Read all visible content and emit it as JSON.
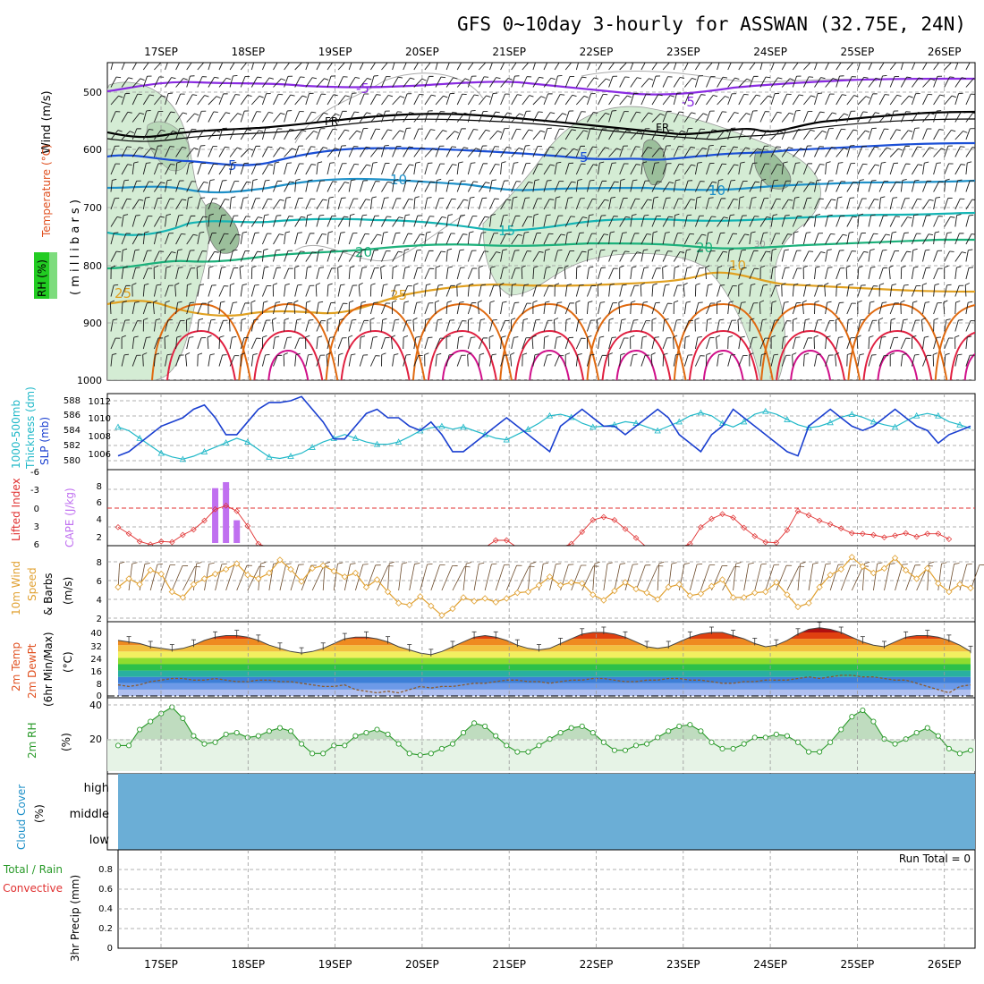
{
  "title": "GFS 0~10day 3-hourly for ASSWAN (32.75E, 24N)",
  "colors": {
    "rh_fill": "#c8e6c8",
    "rh_dark": "#8fb58f",
    "wind_label": "#1a1a1a",
    "temp_label": "#e05020",
    "iso_purple": "#8a2be2",
    "iso_black": "#000000",
    "iso_blue": "#1a4fd6",
    "iso_ltblue": "#1e90c8",
    "iso_cyan": "#14b4b4",
    "iso_green": "#1bb07a",
    "iso_orange": "#e0a020",
    "iso_dkorange": "#e06a10",
    "iso_red": "#e02040",
    "iso_magenta": "#d0108a",
    "slp": "#1a3fd0",
    "thickness": "#20b8c8",
    "lifted": "#e03030",
    "cape": "#c070f0",
    "wind10": "#e0a030",
    "rh2m": "#2a9a2a",
    "cloud": "#6baed6",
    "grid": "#999999"
  },
  "time_axis": {
    "labels": [
      "17SEP",
      "18SEP",
      "19SEP",
      "20SEP",
      "21SEP",
      "22SEP",
      "23SEP",
      "24SEP",
      "25SEP",
      "26SEP"
    ]
  },
  "panels": {
    "upper": {
      "ylabels": [
        "Wind",
        "(m/s)",
        "Temperature",
        "(°C)",
        "RH (%)",
        "( m i l l i b a r s )"
      ],
      "levels": [
        "500",
        "600",
        "700",
        "800",
        "900",
        "1000"
      ],
      "isotherm_labels": [
        "-5",
        "-5",
        "FR",
        "FR",
        "5",
        "5",
        "10",
        "10",
        "15",
        "20",
        "20",
        "25",
        "25",
        "10",
        "30"
      ]
    },
    "slp": {
      "ylabels": [
        "1000-500mb",
        "Thickness (dm)",
        "SLP (mb)"
      ],
      "left_ticks": [
        "588",
        "586",
        "584",
        "582",
        "580"
      ],
      "right_ticks": [
        "1012",
        "1010",
        "1008",
        "1006"
      ]
    },
    "lifted": {
      "ylabels": [
        "Lifted Index",
        "CAPE (J/kg)"
      ],
      "left_ticks": [
        "-6",
        "-3",
        "0",
        "3",
        "6"
      ],
      "right_ticks": [
        "8",
        "6",
        "4",
        "2"
      ]
    },
    "wind10": {
      "ylabels": [
        "10m Wind",
        "Speed",
        "& Barbs",
        "(m/s)"
      ],
      "ticks": [
        "8",
        "6",
        "4",
        "2"
      ]
    },
    "temp2m": {
      "ylabels": [
        "2m Temp",
        "2m DewPt",
        "(6hr Min/Max)",
        "(°C)"
      ],
      "ticks": [
        "40",
        "32",
        "24",
        "16",
        "8",
        "0"
      ]
    },
    "rh2m": {
      "ylabels": [
        "2m RH",
        "(%)"
      ],
      "ticks": [
        "40",
        "20"
      ]
    },
    "cloud": {
      "ylabels": [
        "Cloud Cover",
        "(%)"
      ],
      "levels": [
        "high",
        "middle",
        "low"
      ]
    },
    "precip": {
      "ylabels": [
        "Total / Rain",
        "Convective",
        "3hr Precip (mm)"
      ],
      "ticks": [
        "0.8",
        "0.6",
        "0.4",
        "0.2",
        "0"
      ],
      "run_total": "Run Total = 0"
    }
  },
  "chart_data": [
    {
      "type": "line",
      "name": "slp_thickness",
      "x_count": 80,
      "series": [
        {
          "name": "SLP (mb)",
          "axis": "right",
          "values": [
            1005.5,
            1006,
            1007,
            1008,
            1009,
            1009.5,
            1010,
            1011,
            1011.5,
            1010,
            1008,
            1008,
            1009.5,
            1011,
            1011.8,
            1011.8,
            1012,
            1012.5,
            1011,
            1009.5,
            1007.5,
            1007.5,
            1009,
            1010.5,
            1011,
            1010,
            1010,
            1009,
            1008.5,
            1009.5,
            1008,
            1006,
            1006,
            1007,
            1008,
            1009,
            1010,
            1009,
            1008,
            1007,
            1006,
            1009,
            1010,
            1011,
            1010,
            1009,
            1009,
            1008,
            1009,
            1010,
            1011,
            1010,
            1008,
            1007,
            1006,
            1008,
            1009,
            1011,
            1010,
            1009,
            1008,
            1007,
            1006,
            1005.5,
            1009,
            1010,
            1011,
            1010,
            1009,
            1008.5,
            1009,
            1010,
            1011,
            1010,
            1009,
            1008.5,
            1007,
            1008,
            1008.5,
            1009
          ]
        },
        {
          "name": "1000-500mb Thickness (dm)",
          "axis": "left",
          "values": [
            584.5,
            584,
            583,
            582,
            581,
            580.5,
            580.2,
            580.6,
            581.2,
            581.8,
            582.4,
            583,
            582.5,
            581.5,
            580.5,
            580.3,
            580.6,
            581,
            581.8,
            582.5,
            583,
            583.5,
            583,
            582.5,
            582.2,
            582.2,
            582.5,
            583.2,
            584,
            584.4,
            584.6,
            584.2,
            584.5,
            584,
            583.5,
            583,
            582.8,
            583.5,
            584.2,
            585,
            586,
            586.2,
            585.8,
            585,
            584.5,
            584.6,
            584.8,
            585.2,
            585,
            584.5,
            584,
            584.6,
            585.2,
            586,
            586.4,
            586,
            585,
            584.5,
            585.2,
            586.2,
            586.6,
            586.2,
            585.5,
            584.8,
            584.4,
            584.6,
            585.1,
            585.8,
            586.2,
            585.8,
            585.2,
            584.8,
            584.5,
            585.3,
            586,
            586.3,
            586,
            585.2,
            584.8,
            584.3
          ]
        }
      ]
    },
    {
      "type": "bar",
      "name": "cape_lifted_index",
      "x_count": 80,
      "cape_bars": [
        {
          "index": 9,
          "value": 8.2
        },
        {
          "index": 10,
          "value": 9.1
        },
        {
          "index": 11,
          "value": 3.4
        }
      ],
      "lifted_index": [
        3.2,
        4.3,
        5.6,
        6.1,
        5.6,
        5.7,
        4.5,
        3.6,
        2.1,
        0.2,
        -0.4,
        0.5,
        3,
        6,
        7,
        7,
        7,
        7,
        7,
        7,
        7,
        7,
        7,
        7,
        7,
        7,
        7,
        7,
        7,
        7,
        7,
        7,
        7,
        7,
        7,
        5.4,
        5.4,
        7,
        7,
        7,
        7,
        7,
        6,
        4,
        2,
        1.5,
        2,
        3.5,
        5,
        7,
        7,
        7,
        7,
        6,
        3.2,
        1.8,
        1,
        1.6,
        3.3,
        4.7,
        5.7,
        5.8,
        3.7,
        0.5,
        1.2,
        2.1,
        2.7,
        3.4,
        4.2,
        4.3,
        4.5,
        4.9,
        4.6,
        4.2,
        4.8,
        4.3,
        4.3,
        5.2
      ]
    },
    {
      "type": "line",
      "name": "wind10m",
      "x_count": 80,
      "values": [
        5.3,
        6.2,
        5.6,
        7.1,
        6.7,
        4.8,
        4.2,
        5.6,
        6.2,
        6.7,
        7.2,
        7.8,
        6.6,
        6.2,
        6.8,
        8.2,
        7.2,
        5.9,
        7.3,
        7.6,
        7.0,
        6.4,
        6.8,
        5.3,
        6.1,
        4.8,
        3.6,
        3.4,
        4.3,
        3.3,
        2.3,
        3.0,
        4.2,
        3.8,
        4.1,
        3.7,
        4.1,
        4.7,
        4.8,
        5.5,
        6.4,
        5.5,
        5.8,
        5.7,
        4.5,
        3.9,
        4.9,
        5.8,
        5.1,
        4.7,
        4.0,
        5.3,
        5.6,
        4.4,
        4.6,
        5.4,
        6.1,
        4.2,
        4.2,
        4.7,
        4.8,
        5.8,
        4.5,
        3.2,
        3.6,
        5.3,
        6.6,
        7.2,
        8.5,
        7.5,
        6.8,
        7.3,
        8.4,
        7.1,
        6.2,
        7.3,
        5.7,
        4.8,
        5.6,
        5.2
      ]
    },
    {
      "type": "area",
      "name": "temp2m",
      "x_count": 80,
      "temp_values": [
        35,
        34,
        33,
        31,
        30,
        29,
        30,
        32,
        35,
        37,
        38,
        38,
        37,
        35,
        32,
        30,
        28,
        27,
        28,
        30,
        33,
        36,
        37,
        37,
        36,
        34,
        31,
        29,
        27,
        26,
        28,
        31,
        34,
        37,
        38,
        37,
        35,
        32,
        30,
        29,
        30,
        33,
        36,
        39,
        40,
        40,
        39,
        37,
        34,
        31,
        30,
        31,
        34,
        37,
        39,
        40,
        40,
        38,
        36,
        33,
        31,
        32,
        35,
        39,
        42,
        43,
        42,
        40,
        37,
        34,
        32,
        31,
        34,
        37,
        38,
        38,
        37,
        35,
        32,
        28
      ],
      "dewpoint_values": [
        7,
        6,
        7,
        9,
        10,
        11,
        11,
        10,
        10,
        11,
        10,
        9,
        9,
        10,
        10,
        9,
        9,
        8,
        7,
        6,
        6,
        7,
        4,
        3,
        2,
        3,
        2,
        4,
        6,
        5,
        6,
        6,
        7,
        8,
        8,
        9,
        10,
        10,
        9,
        9,
        8,
        9,
        10,
        10,
        11,
        11,
        10,
        9,
        9,
        10,
        10,
        11,
        11,
        10,
        10,
        9,
        8,
        8,
        9,
        9,
        10,
        10,
        10,
        11,
        12,
        11,
        12,
        13,
        13,
        12,
        12,
        11,
        10,
        10,
        8,
        6,
        4,
        2,
        6,
        7
      ]
    },
    {
      "type": "line",
      "name": "rh2m",
      "x_count": 80,
      "values": [
        16,
        16,
        26,
        31,
        36,
        40,
        33,
        22,
        17,
        18,
        23,
        24,
        21,
        22,
        25,
        27,
        25,
        17,
        11,
        11,
        16,
        16,
        22,
        24,
        26,
        23,
        17,
        11,
        10,
        11,
        14,
        17,
        24,
        30,
        28,
        22,
        16,
        12,
        12,
        16,
        20,
        24,
        27,
        28,
        24,
        18,
        13,
        13,
        16,
        17,
        21,
        25,
        28,
        29,
        25,
        18,
        14,
        14,
        17,
        21,
        21,
        23,
        22,
        18,
        12,
        12,
        18,
        26,
        34,
        38,
        31,
        20,
        17,
        20,
        24,
        27,
        22,
        14,
        11,
        13
      ]
    }
  ]
}
